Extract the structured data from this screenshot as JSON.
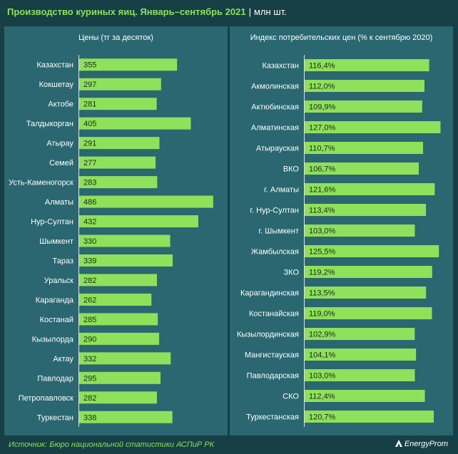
{
  "header": {
    "title": "Производство куриных яиц. Январь–сентябрь 2021",
    "separator": "|",
    "unit": "млн шт."
  },
  "footer": {
    "source": "Источник: Бюро национальной статистики АСПиР РК",
    "brand": "EnergyProm"
  },
  "colors": {
    "background": "#173f46",
    "panel": "#2a6770",
    "bar": "#8fe05a",
    "accent_text": "#8fe05a"
  },
  "chart_data": [
    {
      "type": "bar",
      "orientation": "horizontal",
      "title": "Цены (тг за десяток)",
      "categories": [
        "Казахстан",
        "Кокшетау",
        "Актобе",
        "Талдыкорган",
        "Атырау",
        "Семей",
        "Усть-Каменогорск",
        "Алматы",
        "Нур-Султан",
        "Шымкент",
        "Тараз",
        "Уральск",
        "Караганда",
        "Костанай",
        "Кызылорда",
        "Актау",
        "Павлодар",
        "Петропавловск",
        "Туркестан"
      ],
      "values": [
        355,
        297,
        281,
        405,
        291,
        277,
        283,
        486,
        432,
        330,
        339,
        282,
        262,
        285,
        290,
        332,
        295,
        282,
        338
      ],
      "labels": [
        "355",
        "297",
        "281",
        "405",
        "291",
        "277",
        "283",
        "486",
        "432",
        "330",
        "339",
        "282",
        "262",
        "285",
        "290",
        "332",
        "295",
        "282",
        "338"
      ],
      "xlim": [
        0,
        520
      ]
    },
    {
      "type": "bar",
      "orientation": "horizontal",
      "title": "Индекс потребительских цен (% к сентябрю 2020)",
      "categories": [
        "Казахстан",
        "Акмолинская",
        "Актюбинская",
        "Алматинская",
        "Атырауская",
        "ВКО",
        "г. Алматы",
        "г. Нур-Султан",
        "г. Шымкент",
        "Жамбылская",
        "ЗКО",
        "Карагандинская",
        "Костанайская",
        "Кызылординская",
        "Мангистауская",
        "Павлодарская",
        "СКО",
        "Туркестанская"
      ],
      "values": [
        116.4,
        112.0,
        109.9,
        127.0,
        110.7,
        106.7,
        121.6,
        113.4,
        103.0,
        125.5,
        119.2,
        113.5,
        119.0,
        102.9,
        104.1,
        103.0,
        112.4,
        120.7
      ],
      "labels": [
        "116,4%",
        "112,0%",
        "109,9%",
        "127,0%",
        "110,7%",
        "106,7%",
        "121,6%",
        "113,4%",
        "103,0%",
        "125,5%",
        "119,2%",
        "113,5%",
        "119,0%",
        "102,9%",
        "104,1%",
        "103,0%",
        "112,4%",
        "120,7%"
      ],
      "xlim": [
        0,
        134
      ]
    }
  ]
}
